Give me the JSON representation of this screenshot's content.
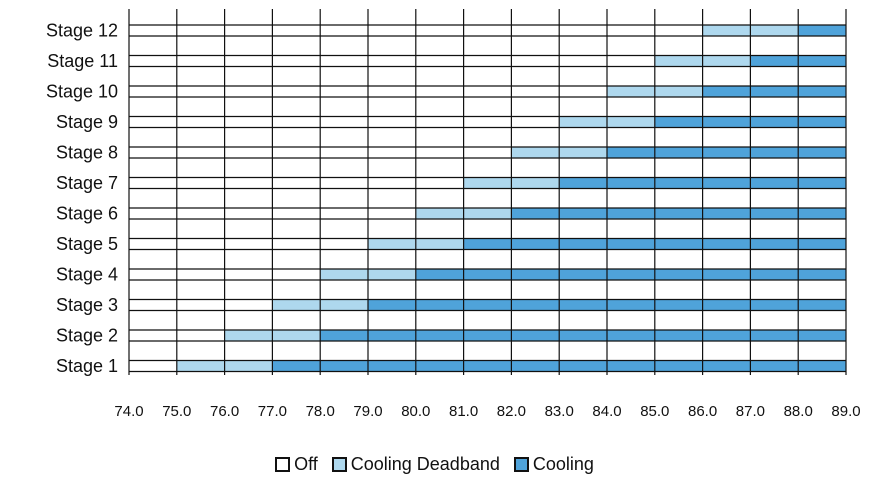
{
  "chart_data": {
    "type": "bar",
    "orientation": "horizontal",
    "stacked": true,
    "categories": [
      "Stage 1",
      "Stage 2",
      "Stage 3",
      "Stage 4",
      "Stage 5",
      "Stage 6",
      "Stage 7",
      "Stage 8",
      "Stage 9",
      "Stage 10",
      "Stage 11",
      "Stage 12"
    ],
    "x_ticks": [
      "74.0",
      "75.0",
      "76.0",
      "77.0",
      "78.0",
      "79.0",
      "80.0",
      "81.0",
      "82.0",
      "83.0",
      "84.0",
      "85.0",
      "86.0",
      "87.0",
      "88.0",
      "89.0"
    ],
    "xlim": [
      74,
      89
    ],
    "grid": true,
    "legend_position": "bottom-center",
    "series": [
      {
        "name": "Off",
        "color": "#ffffff",
        "ranges": [
          [
            74,
            75
          ],
          [
            74,
            76
          ],
          [
            74,
            77
          ],
          [
            74,
            78
          ],
          [
            74,
            79
          ],
          [
            74,
            80
          ],
          [
            74,
            81
          ],
          [
            74,
            82
          ],
          [
            74,
            83
          ],
          [
            74,
            84
          ],
          [
            74,
            85
          ],
          [
            74,
            86
          ]
        ]
      },
      {
        "name": "Cooling Deadband",
        "color": "#aed8ee",
        "ranges": [
          [
            75,
            77
          ],
          [
            76,
            78
          ],
          [
            77,
            79
          ],
          [
            78,
            80
          ],
          [
            79,
            81
          ],
          [
            80,
            82
          ],
          [
            81,
            83
          ],
          [
            82,
            84
          ],
          [
            83,
            85
          ],
          [
            84,
            86
          ],
          [
            85,
            87
          ],
          [
            86,
            88
          ]
        ]
      },
      {
        "name": "Cooling",
        "color": "#4fa3da",
        "ranges": [
          [
            77,
            89
          ],
          [
            78,
            89
          ],
          [
            79,
            89
          ],
          [
            80,
            89
          ],
          [
            81,
            89
          ],
          [
            82,
            89
          ],
          [
            83,
            89
          ],
          [
            84,
            89
          ],
          [
            85,
            89
          ],
          [
            86,
            89
          ],
          [
            87,
            89
          ],
          [
            88,
            89
          ]
        ]
      }
    ]
  },
  "legend": {
    "items": [
      {
        "label": "Off",
        "color": "#ffffff"
      },
      {
        "label": "Cooling Deadband",
        "color": "#aed8ee"
      },
      {
        "label": "Cooling",
        "color": "#4fa3da"
      }
    ]
  }
}
